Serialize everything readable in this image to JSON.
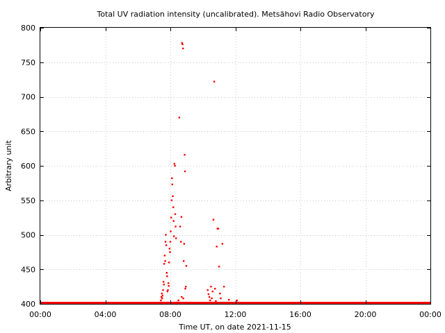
{
  "chart_data": {
    "type": "scatter",
    "title": "Total UV radiation intensity (uncalibrated). Metsähovi Radio Observatory",
    "xlabel": "Time UT, on date 2021-11-15",
    "ylabel": "Arbitrary unit",
    "x_unit": "hours UT",
    "xlim": [
      0,
      24
    ],
    "ylim": [
      400,
      800
    ],
    "x_ticks": [
      {
        "value": 0,
        "label": "00:00"
      },
      {
        "value": 4,
        "label": "04:00"
      },
      {
        "value": 8,
        "label": "08:00"
      },
      {
        "value": 12,
        "label": "12:00"
      },
      {
        "value": 16,
        "label": "16:00"
      },
      {
        "value": 20,
        "label": "20:00"
      },
      {
        "value": 24,
        "label": "00:00"
      }
    ],
    "y_ticks": [
      400,
      450,
      500,
      550,
      600,
      650,
      700,
      750,
      800
    ],
    "grid": true,
    "marker_color": "#ff0000",
    "baseline": {
      "value": 401,
      "x_start": 0,
      "x_end": 24
    },
    "series": [
      {
        "points": [
          [
            7.42,
            405
          ],
          [
            7.45,
            410
          ],
          [
            7.48,
            415
          ],
          [
            7.5,
            408
          ],
          [
            7.52,
            412
          ],
          [
            7.55,
            420
          ],
          [
            7.58,
            432
          ],
          [
            7.6,
            428
          ],
          [
            7.62,
            458
          ],
          [
            7.65,
            470
          ],
          [
            7.68,
            462
          ],
          [
            7.7,
            490
          ],
          [
            7.72,
            500
          ],
          [
            7.75,
            485
          ],
          [
            7.78,
            445
          ],
          [
            7.8,
            440
          ],
          [
            7.82,
            418
          ],
          [
            7.85,
            420
          ],
          [
            7.88,
            430
          ],
          [
            7.9,
            426
          ],
          [
            7.92,
            460
          ],
          [
            7.95,
            480
          ],
          [
            7.98,
            475
          ],
          [
            8.0,
            490
          ],
          [
            8.02,
            505
          ],
          [
            8.05,
            525
          ],
          [
            8.08,
            550
          ],
          [
            8.1,
            582
          ],
          [
            8.12,
            573
          ],
          [
            8.15,
            556
          ],
          [
            8.18,
            540
          ],
          [
            8.2,
            520
          ],
          [
            8.22,
            498
          ],
          [
            8.25,
            603
          ],
          [
            8.28,
            600
          ],
          [
            8.3,
            530
          ],
          [
            8.32,
            512
          ],
          [
            8.35,
            495
          ],
          [
            8.38,
            400
          ],
          [
            8.42,
            402
          ],
          [
            8.5,
            405
          ],
          [
            8.55,
            670
          ],
          [
            8.6,
            512
          ],
          [
            8.65,
            490
          ],
          [
            8.68,
            526
          ],
          [
            8.72,
            778
          ],
          [
            8.75,
            776
          ],
          [
            8.78,
            770
          ],
          [
            8.82,
            462
          ],
          [
            8.85,
            487
          ],
          [
            8.88,
            616
          ],
          [
            8.9,
            592
          ],
          [
            8.92,
            422
          ],
          [
            8.95,
            425
          ],
          [
            8.98,
            455
          ],
          [
            8.7,
            410
          ],
          [
            8.8,
            408
          ],
          [
            10.3,
            420
          ],
          [
            10.35,
            414
          ],
          [
            10.4,
            410
          ],
          [
            10.45,
            405
          ],
          [
            10.5,
            425
          ],
          [
            10.55,
            408
          ],
          [
            10.6,
            418
          ],
          [
            10.65,
            522
          ],
          [
            10.7,
            722
          ],
          [
            10.75,
            422
          ],
          [
            10.8,
            404
          ],
          [
            10.85,
            483
          ],
          [
            10.9,
            509
          ],
          [
            10.95,
            509
          ],
          [
            11.0,
            454
          ],
          [
            11.05,
            415
          ],
          [
            11.1,
            408
          ],
          [
            11.2,
            487
          ],
          [
            11.3,
            425
          ],
          [
            11.6,
            406
          ],
          [
            12.1,
            405
          ]
        ]
      }
    ]
  }
}
